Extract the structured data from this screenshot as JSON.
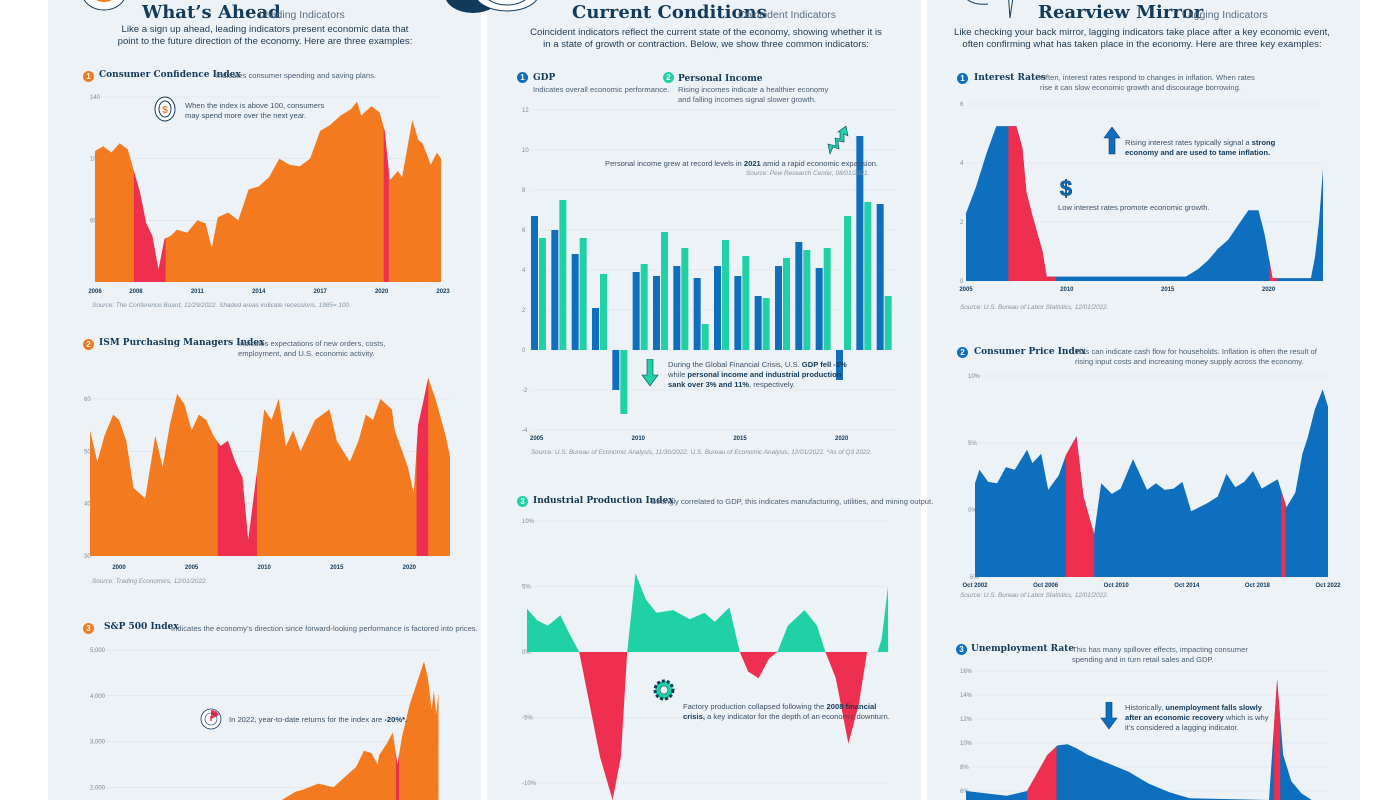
{
  "colors": {
    "orange": "#f47a20",
    "red": "#ef2f4f",
    "blue": "#0f6fbf",
    "teal": "#1fd1a5",
    "navy": "#123a5a"
  },
  "left": {
    "title": "What’s Ahead",
    "subtitle": "Leading Indicators",
    "intro": [
      "Like a sign up ahead, leading indicators present economic data that",
      "point to the future direction of the economy. Here are three examples:"
    ],
    "cci": {
      "num": "1",
      "title": "Consumer Confidence Index",
      "desc": "Indicates consumer spending and saving plans.",
      "note": [
        "When the index is above 100, consumers",
        "may spend more over the next year."
      ],
      "icon": "coin-dollar-icon",
      "source": "Source: The Conference Board, 11/29/2022. Shaded areas indicate recessions. 1985= 100."
    },
    "ism": {
      "num": "2",
      "title": "ISM Purchasing Managers Index",
      "desc": [
        "Indicates expectations of new orders, costs,",
        "employment, and U.S. economic activity."
      ],
      "source": "Source: Trading Economics, 12/01/2022."
    },
    "sp": {
      "num": "3",
      "title": "S&P 500 Index",
      "desc": "Indicates the economy’s direction since forward-looking performance is factored into prices.",
      "note_a": "In 2022, year-to-date returns for the index are ",
      "note_b": "-20%*.",
      "icon": "gauge-icon"
    }
  },
  "middle": {
    "title": "Current Conditions",
    "subtitle": "Coincident Indicators",
    "intro": [
      "Coincident indicators reflect the current state of the economy, showing whether it is",
      "in a state of growth or contraction. Below, we show three common indicators:"
    ],
    "gdp": {
      "num": "1",
      "title": "GDP",
      "desc": "Indicates overall economic performance."
    },
    "pi": {
      "num": "2",
      "title": "Personal Income",
      "desc": [
        "Rising incomes indicate a healthier economy",
        "and falling incomes signal slower growth."
      ]
    },
    "note1": {
      "a": "Personal income grew at record levels in ",
      "b": "2021",
      "c": " amid a rapid economic expansion.",
      "source": "Source: Pew Research Center, 08/01/2021.",
      "icon": "arrow-up-zigzag-icon"
    },
    "note2": {
      "l1a": "During the Global Financial Crisis, U.S. ",
      "l1b": "GDP fell -2%",
      "l2a": "while ",
      "l2b": "personal income and industrial production",
      "l3b": "sank over 3% and 11%",
      "l3c": ", respectively.",
      "icon": "arrow-down-icon"
    },
    "gdp_source": "Source: U.S. Bureau of Economic Analysis, 11/30/2022. U.S. Bureau of Economic Analysis, 12/01/2022. *As of Q3 2022.",
    "ipi": {
      "num": "3",
      "title": "Industrial Production Index",
      "desc": "Strongly correlated to GDP, this indicates manufacturing, utilities, and mining output.",
      "note_l1": "Factory production collapsed following the ",
      "note_l1b": "2008 financial",
      "note_l2b": "crisis,",
      "note_l2": " a key indicator for the depth of an economic downturn.",
      "icon": "gear-icon"
    }
  },
  "right": {
    "title": "Rearview Mirror",
    "subtitle": "Lagging Indicators",
    "intro": [
      "Like checking your back mirror, lagging indicators take place after a key economic event,",
      "often confirming what has taken place in the economy. Here are three key examples:"
    ],
    "rates": {
      "num": "1",
      "title": "Interest Rates",
      "desc": [
        "Often, interest rates respond to changes in inflation. When rates",
        "rise it can slow economic growth and discourage borrowing."
      ],
      "note1a": "Rising interest rates typically signal a ",
      "note1b": "strong",
      "note1c": "economy and are used to tame inflation.",
      "note2": "Low interest rates promote economic growth.",
      "source": "Source: U.S. Bureau of Labor Statistics, 12/01/2022."
    },
    "cpi": {
      "num": "2",
      "title": "Consumer Price Index",
      "desc": [
        "This can indicate cash flow for households. Inflation is often the result of",
        "rising input costs and increasing money supply across the economy."
      ],
      "source": "Source: U.S. Bureau of Labor Statistics, 12/01/2022."
    },
    "unemp": {
      "num": "3",
      "title": "Unemployment Rate",
      "desc": [
        "This has many spillover effects, impacting consumer",
        "spending and in turn retail sales and GDP."
      ],
      "note_a": "Historically, ",
      "note_b": "unemployment falls slowly",
      "note_c": "after an economic recovery",
      "note_d": " which is why",
      "note_e": "it’s considered a lagging indicator."
    }
  },
  "chart_data": [
    {
      "id": "cci",
      "type": "area",
      "color": "#f47a20",
      "ylim": [
        20,
        140
      ],
      "yticks": [
        "140",
        "100",
        "60"
      ],
      "ytick_values": [
        140,
        100,
        60
      ],
      "xlim": [
        2006,
        2022.9
      ],
      "xticks": [
        "2006",
        "2008",
        "2011",
        "2014",
        "2017",
        "2020",
        "2023"
      ],
      "xtick_values": [
        2006,
        2008,
        2011,
        2014,
        2017,
        2020,
        2023
      ],
      "recessions": [
        [
          2007.9,
          2009.45
        ],
        [
          2020.1,
          2020.35
        ]
      ],
      "x": [
        2006,
        2006.4,
        2006.8,
        2007.2,
        2007.6,
        2007.9,
        2008.2,
        2008.5,
        2008.8,
        2009.1,
        2009.4,
        2009.7,
        2010,
        2010.5,
        2011,
        2011.4,
        2011.7,
        2012,
        2012.5,
        2013,
        2013.5,
        2014,
        2014.5,
        2015,
        2015.5,
        2016,
        2016.5,
        2017,
        2017.5,
        2018,
        2018.5,
        2018.8,
        2019,
        2019.5,
        2019.9,
        2020.15,
        2020.4,
        2020.8,
        2021,
        2021.5,
        2021.8,
        2022,
        2022.4,
        2022.7,
        2022.9
      ],
      "y": [
        105,
        108,
        104,
        110,
        106,
        92,
        78,
        58,
        50,
        28,
        48,
        50,
        54,
        52,
        60,
        58,
        42,
        62,
        65,
        60,
        80,
        82,
        88,
        100,
        96,
        95,
        100,
        118,
        122,
        128,
        132,
        137,
        128,
        134,
        130,
        118,
        86,
        92,
        88,
        125,
        112,
        110,
        96,
        104,
        100
      ]
    },
    {
      "id": "ism",
      "type": "area",
      "color": "#f47a20",
      "ylim": [
        30,
        64
      ],
      "yticks": [
        "60",
        "50",
        "40",
        "30"
      ],
      "ytick_values": [
        60,
        50,
        40,
        30
      ],
      "xlim": [
        1998,
        2022.8
      ],
      "xticks": [
        "2000",
        "2005",
        "2010",
        "2015",
        "2020"
      ],
      "xtick_values": [
        2000,
        2005,
        2010,
        2015,
        2020
      ],
      "recessions": [
        [
          2006.8,
          2009.5
        ],
        [
          2020.5,
          2021.3
        ]
      ],
      "x": [
        1998,
        1998.5,
        1999,
        1999.6,
        2000,
        2000.5,
        2001,
        2001.8,
        2002.5,
        2003,
        2003.5,
        2004,
        2004.5,
        2005,
        2005.5,
        2006,
        2006.5,
        2007,
        2007.5,
        2008,
        2008.5,
        2008.9,
        2009.5,
        2010,
        2010.5,
        2011,
        2011.5,
        2012,
        2012.5,
        2013,
        2013.5,
        2014,
        2014.5,
        2015,
        2015.9,
        2016.5,
        2017,
        2017.5,
        2018,
        2018.8,
        2019,
        2019.9,
        2020.3,
        2020.6,
        2021,
        2021.3,
        2021.8,
        2022,
        2022.5,
        2022.8
      ],
      "y": [
        54,
        48,
        53,
        57,
        56,
        52,
        43,
        41,
        53,
        47,
        55,
        61,
        59,
        54,
        57,
        56,
        53,
        51,
        52,
        48,
        45,
        33,
        46,
        58,
        56,
        60,
        51,
        54,
        50,
        53,
        56,
        57,
        58,
        52,
        48,
        52,
        57,
        56,
        60,
        58,
        54,
        47,
        42,
        55,
        60,
        64,
        60,
        58,
        53,
        49
      ]
    },
    {
      "id": "sp",
      "type": "area",
      "color": "#f47a20",
      "ylim": [
        1700,
        5000
      ],
      "yticks": [
        "5,000",
        "4,000",
        "3,000",
        "2,000"
      ],
      "ytick_values": [
        5000,
        4000,
        3000,
        2000
      ],
      "xlim": [
        2000,
        2023
      ],
      "recessions": [
        [
          2020.1,
          2020.3
        ]
      ],
      "x": [
        2012.5,
        2013,
        2013.5,
        2014,
        2015,
        2016,
        2016.5,
        2017,
        2017.5,
        2018,
        2018.5,
        2018.9,
        2019,
        2019.5,
        2019.9,
        2020.2,
        2020.5,
        2021,
        2021.5,
        2021.95,
        2022.2,
        2022.45,
        2022.6,
        2022.75,
        2022.9
      ],
      "y": [
        1650,
        1800,
        1900,
        1950,
        2080,
        2000,
        2150,
        2300,
        2450,
        2800,
        2750,
        2500,
        2700,
        2950,
        3200,
        2500,
        3100,
        3800,
        4300,
        4750,
        4400,
        3700,
        4100,
        3600,
        4050
      ]
    },
    {
      "id": "gdp",
      "type": "bar",
      "ylim": [
        -4,
        12
      ],
      "yticks": [
        "12",
        "10",
        "8",
        "6",
        "4",
        "2",
        "0",
        "-2",
        "-4"
      ],
      "ytick_values": [
        12,
        10,
        8,
        6,
        4,
        2,
        0,
        -2,
        -4
      ],
      "categories": [
        "2005",
        "2006",
        "2007",
        "2008",
        "2009",
        "2010",
        "2011",
        "2012",
        "2013",
        "2014",
        "2015",
        "2016",
        "2017",
        "2018",
        "2019",
        "2020",
        "2021",
        "2022*"
      ],
      "xticks": [
        "2005",
        "2010",
        "2015",
        "2020"
      ],
      "series": [
        {
          "name": "GDP",
          "color": "#0f6fbf",
          "values": [
            6.7,
            6.0,
            4.8,
            2.1,
            -2.0,
            3.9,
            3.7,
            4.2,
            3.6,
            4.2,
            3.7,
            2.7,
            4.2,
            5.4,
            4.1,
            -1.5,
            10.7,
            7.3
          ]
        },
        {
          "name": "Personal Income",
          "color": "#1fd1a5",
          "values": [
            5.6,
            7.5,
            5.6,
            3.8,
            -3.2,
            4.3,
            5.9,
            5.1,
            1.3,
            5.5,
            4.7,
            2.6,
            4.6,
            5.0,
            5.1,
            6.7,
            7.4,
            2.7
          ]
        }
      ]
    },
    {
      "id": "ipi",
      "type": "area-signed",
      "pos_color": "#1fd1a5",
      "neg_color": "#ef2f4f",
      "ylim": [
        -11.3,
        10
      ],
      "yticks": [
        "10%",
        "5%",
        "0%",
        "-5%",
        "-10%"
      ],
      "ytick_values": [
        10,
        5,
        0,
        -5,
        -10
      ],
      "xlim": [
        2005,
        2022.3
      ],
      "x": [
        2005,
        2005.5,
        2006,
        2006.6,
        2007,
        2007.5,
        2008,
        2008.5,
        2009.1,
        2009.5,
        2009.8,
        2010.2,
        2010.7,
        2011.2,
        2012,
        2012.8,
        2013.5,
        2014,
        2014.7,
        2015.2,
        2015.6,
        2016.1,
        2016.6,
        2017,
        2017.5,
        2018.3,
        2018.9,
        2019.3,
        2019.8,
        2020.4,
        2020.9,
        2021.3,
        2021.8,
        2022,
        2022.3
      ],
      "y": [
        3.3,
        2.4,
        2.0,
        2.8,
        1.5,
        0,
        -4,
        -8,
        -12,
        -8,
        0,
        6,
        4,
        3,
        3.2,
        2.5,
        3,
        2.3,
        3.4,
        0,
        -1.5,
        -2,
        -0.5,
        0,
        2,
        3.2,
        2,
        0,
        -2,
        -7,
        -4,
        0,
        0,
        1,
        5
      ]
    },
    {
      "id": "rates",
      "type": "area",
      "color": "#0f6fbf",
      "ylim": [
        0,
        6
      ],
      "yticks": [
        "6",
        "4",
        "2",
        "0"
      ],
      "ytick_values": [
        6,
        4,
        2,
        0
      ],
      "xlim": [
        2005,
        2022.7
      ],
      "xticks": [
        "2005",
        "2010",
        "2015",
        "2020"
      ],
      "xtick_values": [
        2005,
        2010,
        2015,
        2020
      ],
      "recessions": [
        [
          2007.1,
          2009.45
        ],
        [
          2020.05,
          2020.45
        ]
      ],
      "x": [
        2005,
        2005.5,
        2006,
        2006.5,
        2007.5,
        2007.8,
        2008,
        2008.3,
        2008.8,
        2009,
        2015.9,
        2016.5,
        2017,
        2017.5,
        2018,
        2018.5,
        2019,
        2019.5,
        2019.8,
        2020.2,
        2022.1,
        2022.3,
        2022.5,
        2022.7
      ],
      "y": [
        2.3,
        3.2,
        4.3,
        5.25,
        5.25,
        4.5,
        3.0,
        2.2,
        1.0,
        0.15,
        0.15,
        0.4,
        0.7,
        1.1,
        1.4,
        1.9,
        2.4,
        2.4,
        1.6,
        0.1,
        0.1,
        0.8,
        2.0,
        3.8
      ]
    },
    {
      "id": "cpi",
      "type": "area",
      "color": "#0f6fbf",
      "ylim": [
        -5,
        10
      ],
      "yticks": [
        "10%",
        "5%",
        "0%",
        "-5%"
      ],
      "ytick_values": [
        10,
        5,
        0,
        -5
      ],
      "xlim": [
        2002.75,
        2022.75
      ],
      "xticks": [
        "Oct 2002",
        "Oct 2006",
        "Oct 2010",
        "Oct 2014",
        "Oct 2018",
        "Oct 2022"
      ],
      "xtick_values": [
        2002.75,
        2006.75,
        2010.75,
        2014.75,
        2018.75,
        2022.75
      ],
      "recessions": [
        [
          2007.9,
          2009.5
        ],
        [
          2020.1,
          2020.35
        ]
      ],
      "x": [
        2002.75,
        2003,
        2003.5,
        2004,
        2004.5,
        2005,
        2005.7,
        2006,
        2006.5,
        2006.9,
        2007.5,
        2007.9,
        2008.5,
        2008.9,
        2009.5,
        2009.9,
        2010.5,
        2011,
        2011.7,
        2012.5,
        2013,
        2013.5,
        2014,
        2014.5,
        2015,
        2015.9,
        2016.5,
        2017,
        2017.5,
        2018,
        2018.5,
        2019,
        2019.9,
        2020.4,
        2020.9,
        2021.3,
        2021.6,
        2022,
        2022.45,
        2022.75
      ],
      "y": [
        2.0,
        3.0,
        2.1,
        2.0,
        3.2,
        3.0,
        4.5,
        3.5,
        4.2,
        1.5,
        2.6,
        4.1,
        5.5,
        1.0,
        -1.8,
        2.0,
        1.2,
        1.6,
        3.8,
        1.5,
        2.0,
        1.5,
        1.6,
        2.1,
        -0.1,
        0.5,
        1.0,
        2.7,
        1.7,
        2.1,
        2.9,
        1.6,
        2.3,
        0.2,
        1.3,
        4.2,
        5.4,
        7.5,
        9.0,
        7.7
      ]
    },
    {
      "id": "unemp",
      "type": "area",
      "color": "#0f6fbf",
      "ylim": [
        5.25,
        16
      ],
      "yticks": [
        "16%",
        "14%",
        "12%",
        "10%",
        "8%",
        "6%"
      ],
      "ytick_values": [
        16,
        14,
        12,
        10,
        8,
        6
      ],
      "xlim": [
        2005,
        2022.9
      ],
      "recessions": [
        [
          2008,
          2009.45
        ],
        [
          2020.15,
          2020.45
        ]
      ],
      "x": [
        2005,
        2006,
        2007,
        2008,
        2008.5,
        2009,
        2009.5,
        2010,
        2010.5,
        2011,
        2012,
        2013,
        2014,
        2015,
        2016,
        2019.9,
        2020.3,
        2020.6,
        2021,
        2021.5,
        2022,
        2022.9
      ],
      "y": [
        6.0,
        5.8,
        5.6,
        6.0,
        7.5,
        9.0,
        9.8,
        9.9,
        9.5,
        9.0,
        8.3,
        7.6,
        6.6,
        5.9,
        5.4,
        5.0,
        15.3,
        9.0,
        6.8,
        5.8,
        5.0,
        5.0
      ]
    }
  ]
}
